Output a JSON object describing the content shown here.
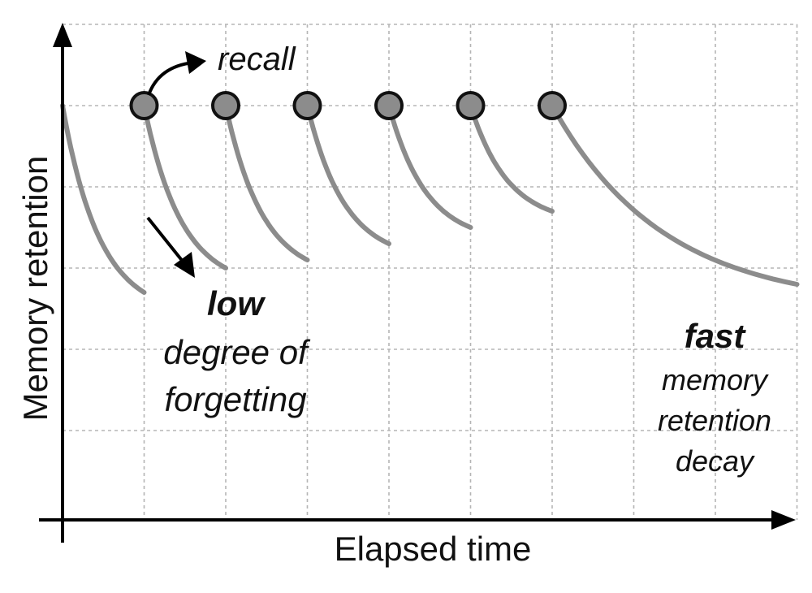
{
  "chart_data": {
    "type": "line",
    "xlabel": "Elapsed time",
    "ylabel": "Memory retention",
    "xlim": [
      0,
      9
    ],
    "ylim": [
      0,
      6
    ],
    "grid": true,
    "recall_points": [
      {
        "x": 1,
        "y": 5
      },
      {
        "x": 2,
        "y": 5
      },
      {
        "x": 3,
        "y": 5
      },
      {
        "x": 4,
        "y": 5
      },
      {
        "x": 5,
        "y": 5
      },
      {
        "x": 6,
        "y": 5
      }
    ],
    "segments": [
      {
        "x_start": 0,
        "x_end": 1,
        "y_start": 5,
        "y_end": 2.7
      },
      {
        "x_start": 1,
        "x_end": 2,
        "y_start": 5,
        "y_end": 3.0
      },
      {
        "x_start": 2,
        "x_end": 3,
        "y_start": 5,
        "y_end": 3.1
      },
      {
        "x_start": 3,
        "x_end": 4,
        "y_start": 5,
        "y_end": 3.3
      },
      {
        "x_start": 4,
        "x_end": 5,
        "y_start": 5,
        "y_end": 3.5
      },
      {
        "x_start": 5,
        "x_end": 6,
        "y_start": 5,
        "y_end": 3.7
      },
      {
        "x_start": 6,
        "x_end": 9,
        "y_start": 5,
        "y_end": 2.8
      }
    ],
    "annotations": {
      "recall": "recall",
      "low_bold": "low",
      "low_line1": "degree of",
      "low_line2": "forgetting",
      "fast_bold": "fast",
      "fast_line1": "memory",
      "fast_line2": "retention",
      "fast_line3": "decay"
    },
    "colors": {
      "curve": "#8c8c8c",
      "marker_fill": "#8c8c8c",
      "marker_stroke": "#111111",
      "grid": "#b5b5b5",
      "axis": "#000000"
    }
  }
}
